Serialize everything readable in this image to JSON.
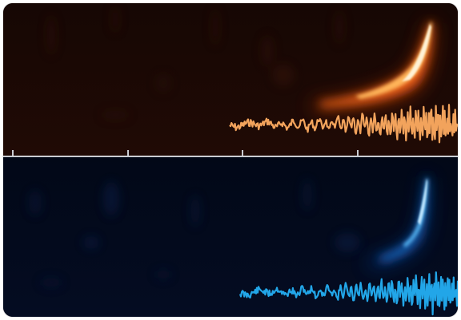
{
  "figure": {
    "top_panel": {
      "background_color": "#1b0804",
      "glow_color": "#ff6a1c",
      "core_color": "#fff2d6",
      "trace_color": "#f2a35c"
    },
    "bottom_panel": {
      "background_color": "#030a1c",
      "glow_color": "#1e7fe6",
      "core_color": "#bfe6ff",
      "trace_color": "#22a6e8"
    },
    "divider": {
      "color": "#c9ccd2",
      "tick_count": 4
    }
  }
}
